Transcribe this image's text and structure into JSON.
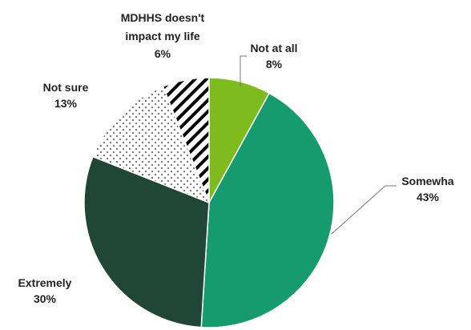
{
  "chart_data": {
    "type": "pie",
    "title": "",
    "start_angle_deg": 0,
    "direction": "clockwise",
    "slices": [
      {
        "label": "Not at all",
        "value": 8,
        "value_label": "8%",
        "color": "#7dbb1f",
        "pattern": "solid"
      },
      {
        "label": "Somewha",
        "value": 43,
        "value_label": "43%",
        "color": "#169b6e",
        "pattern": "solid"
      },
      {
        "label": "Extremely",
        "value": 30,
        "value_label": "30%",
        "color": "#1f4637",
        "pattern": "solid"
      },
      {
        "label": "Not sure",
        "value": 13,
        "value_label": "13%",
        "color": "#ffffff",
        "pattern": "dots"
      },
      {
        "label": "MDHHS doesn't impact my life",
        "value": 6,
        "value_label": "6%",
        "color": "#ffffff",
        "pattern": "diagonal-stripes"
      }
    ],
    "legend": "none",
    "leader_lines": true
  }
}
